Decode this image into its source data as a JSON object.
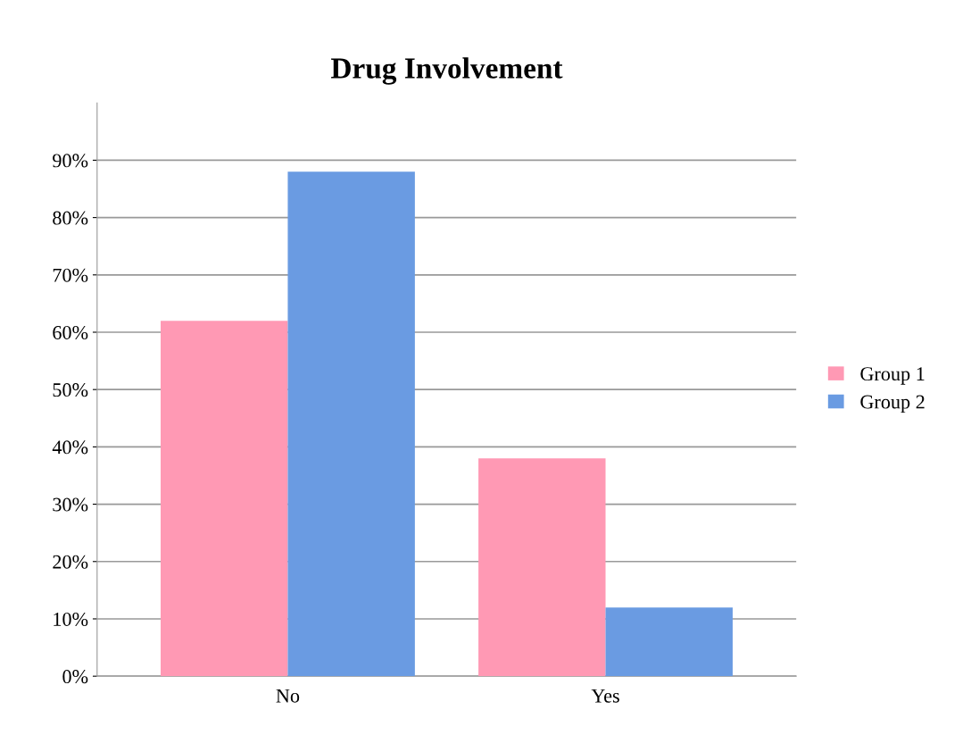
{
  "chart_data": {
    "type": "bar",
    "title": "Drug Involvement",
    "categories": [
      "No",
      "Yes"
    ],
    "series": [
      {
        "name": "Group 1",
        "color": "#ff99b4",
        "values": [
          62,
          38
        ]
      },
      {
        "name": "Group 2",
        "color": "#6a9be2",
        "values": [
          88,
          12
        ]
      }
    ],
    "ylim": [
      0,
      100
    ],
    "yticks": [
      {
        "value": 0,
        "label": "0%"
      },
      {
        "value": 10,
        "label": "10%"
      },
      {
        "value": 20,
        "label": "20%"
      },
      {
        "value": 30,
        "label": "30%"
      },
      {
        "value": 40,
        "label": "40%"
      },
      {
        "value": 50,
        "label": "50%"
      },
      {
        "value": 60,
        "label": "60%"
      },
      {
        "value": 70,
        "label": "70%"
      },
      {
        "value": 80,
        "label": "80%"
      },
      {
        "value": 90,
        "label": "90%"
      }
    ],
    "grid": "y",
    "legend": "right"
  }
}
